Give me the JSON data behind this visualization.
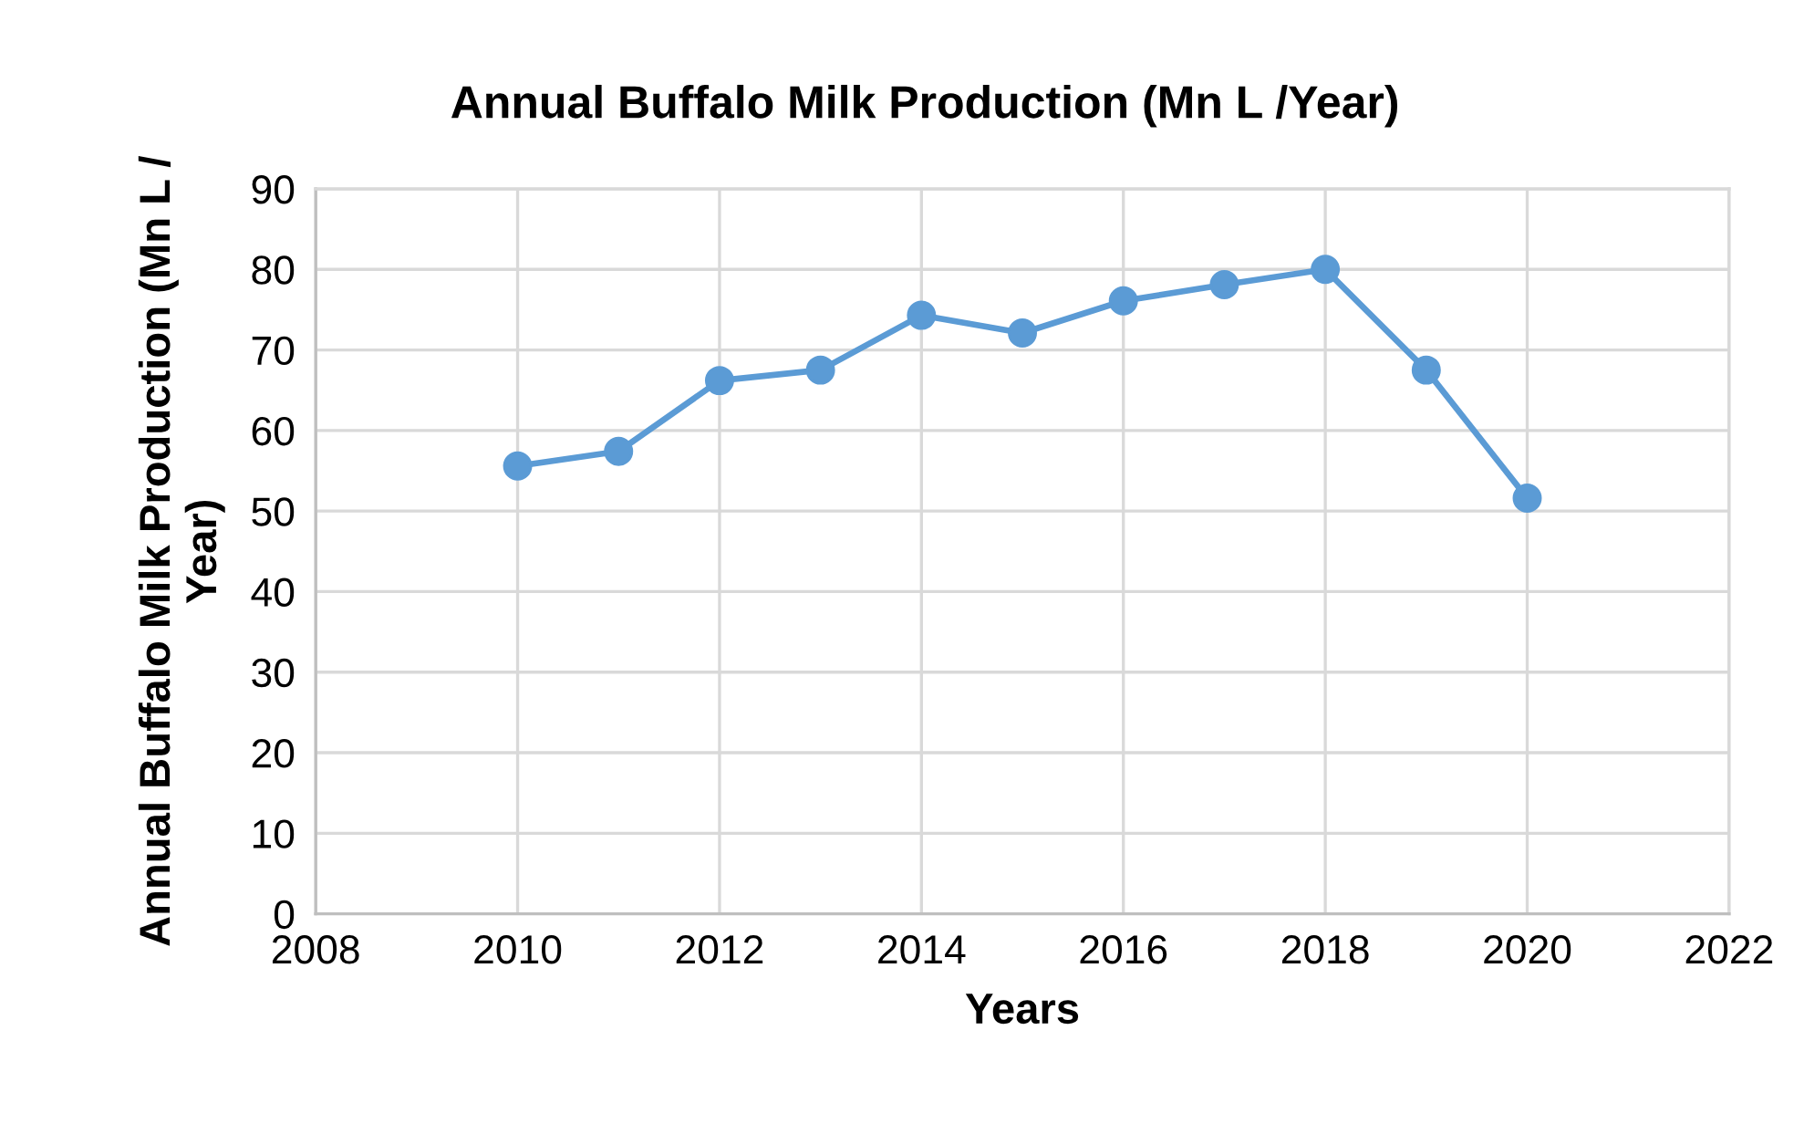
{
  "chart_data": {
    "type": "line",
    "title": "Annual Buffalo Milk Production (Mn L /Year)",
    "xlabel": "Years",
    "ylabel": "Annual Buffalo Milk Production (Mn L /\nYear)",
    "x": [
      2010,
      2011,
      2012,
      2013,
      2014,
      2015,
      2016,
      2017,
      2018,
      2019,
      2020
    ],
    "series": [
      {
        "color": "#5b9bd5",
        "values": [
          55.6,
          57.4,
          66.2,
          67.5,
          74.3,
          72.1,
          76.1,
          78.1,
          80.0,
          67.5,
          51.6
        ]
      }
    ],
    "xlim": [
      2008,
      2022
    ],
    "xticks": [
      2008,
      2010,
      2012,
      2014,
      2016,
      2018,
      2020,
      2022
    ],
    "ylim": [
      0,
      90
    ],
    "yticks": [
      0,
      10,
      20,
      30,
      40,
      50,
      60,
      70,
      80,
      90
    ],
    "grid": true,
    "marker": "circle",
    "line_style": "solid"
  }
}
